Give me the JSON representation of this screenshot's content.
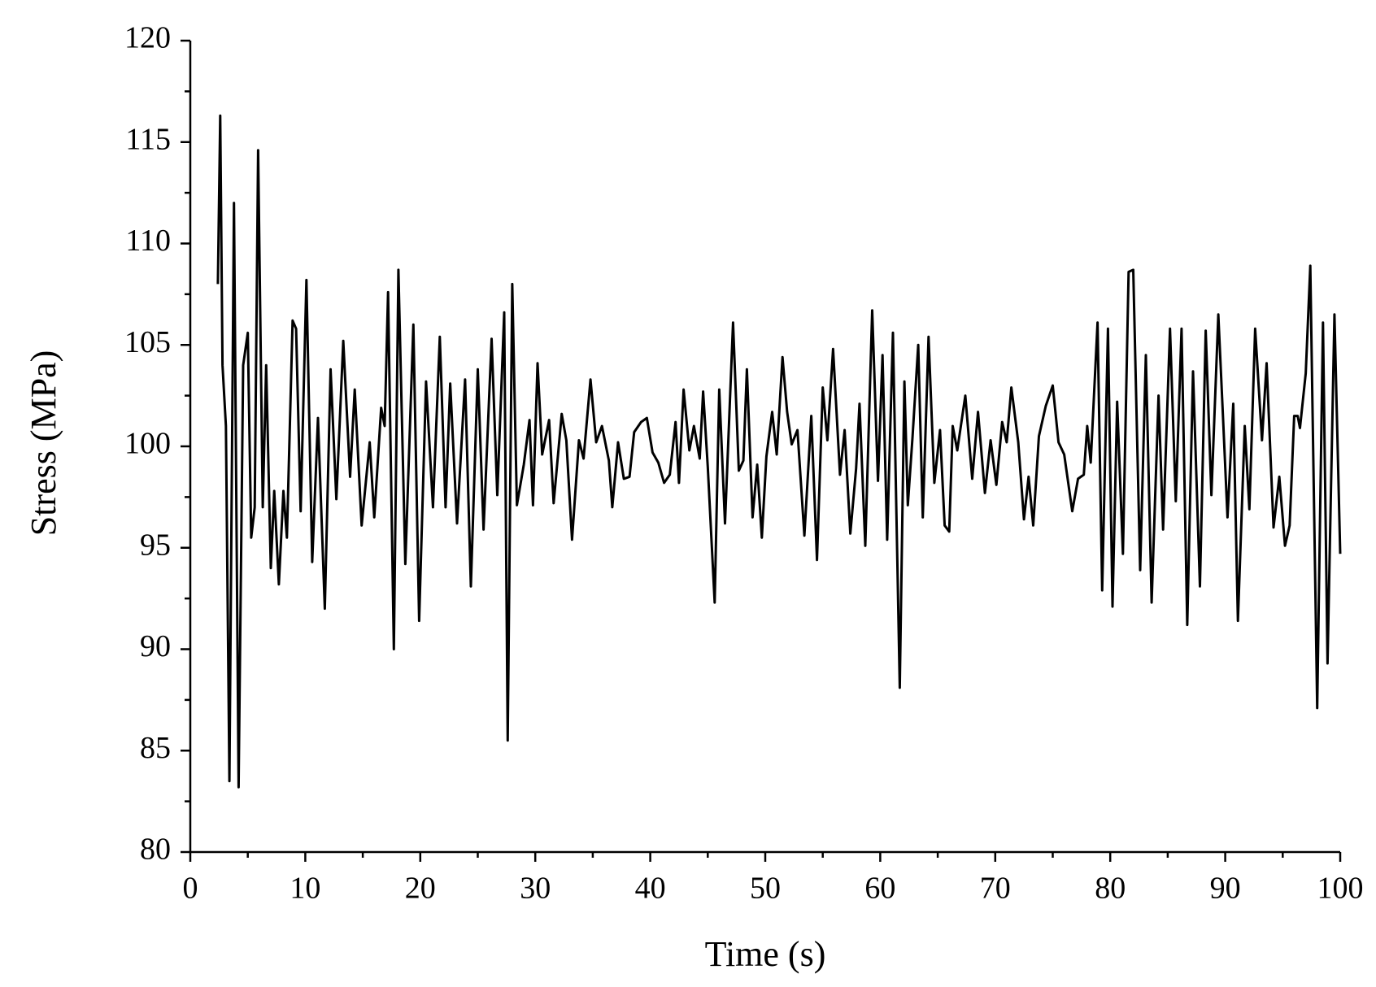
{
  "chart_data": {
    "type": "line",
    "xlabel": "Time (s)",
    "ylabel": "Stress (MPa)",
    "xlim": [
      0,
      100
    ],
    "xticks": [
      0,
      10,
      20,
      30,
      40,
      50,
      60,
      70,
      80,
      90,
      100
    ],
    "xminorticks": [
      5,
      15,
      25,
      35,
      45,
      55,
      65,
      75,
      85,
      95
    ],
    "ylim": [
      80,
      120
    ],
    "yticks": [
      80,
      85,
      90,
      95,
      100,
      105,
      110,
      115,
      120
    ],
    "yminorticks": [
      82.5,
      87.5,
      92.5,
      97.5,
      102.5,
      107.5,
      112.5,
      117.5
    ],
    "series": [
      {
        "color": "#000000",
        "x": [
          2.4,
          2.6,
          2.8,
          3.1,
          3.4,
          3.8,
          4.2,
          4.6,
          5.0,
          5.3,
          5.6,
          5.9,
          6.3,
          6.6,
          7.0,
          7.3,
          7.7,
          8.1,
          8.4,
          8.9,
          9.2,
          9.6,
          10.1,
          10.6,
          11.1,
          11.7,
          12.2,
          12.7,
          13.3,
          13.9,
          14.3,
          14.9,
          15.6,
          16.0,
          16.6,
          16.9,
          17.2,
          17.7,
          18.1,
          18.7,
          19.4,
          19.9,
          20.5,
          21.1,
          21.7,
          22.2,
          22.6,
          23.2,
          23.9,
          24.4,
          25.0,
          25.5,
          26.2,
          26.7,
          27.3,
          27.6,
          28.0,
          28.4,
          29.0,
          29.5,
          29.8,
          30.2,
          30.6,
          31.2,
          31.6,
          32.3,
          32.7,
          33.2,
          33.8,
          34.2,
          34.8,
          35.3,
          35.8,
          36.4,
          36.7,
          37.2,
          37.7,
          38.2,
          38.6,
          39.2,
          39.7,
          40.2,
          40.7,
          41.2,
          41.7,
          42.2,
          42.5,
          42.9,
          43.4,
          43.8,
          44.3,
          44.6,
          45.0,
          45.6,
          46.0,
          46.5,
          47.2,
          47.7,
          48.1,
          48.4,
          48.9,
          49.3,
          49.7,
          50.1,
          50.6,
          51.0,
          51.5,
          51.9,
          52.3,
          52.8,
          53.4,
          54.0,
          54.5,
          55.0,
          55.4,
          55.9,
          56.5,
          56.9,
          57.4,
          57.9,
          58.2,
          58.7,
          59.3,
          59.8,
          60.2,
          60.6,
          61.1,
          61.7,
          62.1,
          62.4,
          62.8,
          63.3,
          63.7,
          64.2,
          64.7,
          65.2,
          65.6,
          66.0,
          66.3,
          66.7,
          67.4,
          68.0,
          68.5,
          69.1,
          69.6,
          70.1,
          70.6,
          71.0,
          71.4,
          72.0,
          72.5,
          72.9,
          73.3,
          73.8,
          74.4,
          75.0,
          75.5,
          76.0,
          76.7,
          77.2,
          77.7,
          78.0,
          78.3,
          78.9,
          79.3,
          79.8,
          80.2,
          80.6,
          81.1,
          81.6,
          82.0,
          82.6,
          83.1,
          83.6,
          84.2,
          84.6,
          85.2,
          85.7,
          86.2,
          86.7,
          87.2,
          87.8,
          88.3,
          88.8,
          89.4,
          89.8,
          90.2,
          90.7,
          91.1,
          91.7,
          92.1,
          92.6,
          93.2,
          93.6,
          94.2,
          94.7,
          95.2,
          95.6,
          96.0,
          96.3,
          96.5,
          97.0,
          97.4,
          98.0,
          98.5,
          98.9,
          99.5,
          100.0
        ],
        "values": [
          108,
          116.3,
          104,
          101,
          83.5,
          112,
          83.2,
          104,
          105.6,
          95.5,
          97,
          114.6,
          97,
          104,
          94,
          97.8,
          93.2,
          97.8,
          95.5,
          106.2,
          105.8,
          96.8,
          108.2,
          94.3,
          101.4,
          92,
          103.8,
          97.4,
          105.2,
          98.5,
          102.8,
          96.1,
          100.2,
          96.5,
          101.9,
          101,
          107.6,
          90,
          108.7,
          94.2,
          106,
          91.4,
          103.2,
          97,
          105.4,
          97,
          103.1,
          96.2,
          103.3,
          93.1,
          103.8,
          95.9,
          105.3,
          97.6,
          106.6,
          85.5,
          108,
          97.1,
          99.1,
          101.3,
          97.1,
          104.1,
          99.6,
          101.3,
          97.2,
          101.6,
          100.3,
          95.4,
          100.3,
          99.4,
          103.3,
          100.2,
          101,
          99.3,
          97,
          100.2,
          98.4,
          98.5,
          100.7,
          101.2,
          101.4,
          99.7,
          99.2,
          98.2,
          98.6,
          101.2,
          98.2,
          102.8,
          99.8,
          101,
          99.4,
          102.7,
          99,
          92.3,
          102.8,
          96.2,
          106.1,
          98.8,
          99.3,
          103.8,
          96.5,
          99.1,
          95.5,
          99.5,
          101.7,
          99.6,
          104.4,
          101.7,
          100.1,
          100.8,
          95.6,
          101.5,
          94.4,
          102.9,
          100.3,
          104.8,
          98.6,
          100.8,
          95.7,
          98.9,
          102.1,
          95.1,
          106.7,
          98.3,
          104.5,
          95.4,
          105.6,
          88.1,
          103.2,
          97.1,
          100.4,
          105,
          96.5,
          105.4,
          98.2,
          100.8,
          96.1,
          95.8,
          101,
          99.8,
          102.5,
          98.4,
          101.7,
          97.7,
          100.3,
          98.1,
          101.2,
          100.2,
          102.9,
          100.2,
          96.4,
          98.5,
          96.1,
          100.5,
          102,
          103,
          100.2,
          99.6,
          96.8,
          98.4,
          98.6,
          101,
          99.2,
          106.1,
          92.9,
          105.8,
          92.1,
          102.2,
          94.7,
          108.6,
          108.7,
          93.9,
          104.5,
          92.3,
          102.5,
          95.9,
          105.8,
          97.3,
          105.8,
          91.2,
          103.7,
          93.1,
          105.7,
          97.6,
          106.5,
          101.5,
          96.5,
          102.1,
          91.4,
          101,
          96.9,
          105.8,
          100.3,
          104.1,
          96,
          98.5,
          95.1,
          96.1,
          101.5,
          101.5,
          100.9,
          103.6,
          108.9,
          87.1,
          106.1,
          89.3,
          106.5,
          94.7
        ]
      }
    ]
  }
}
